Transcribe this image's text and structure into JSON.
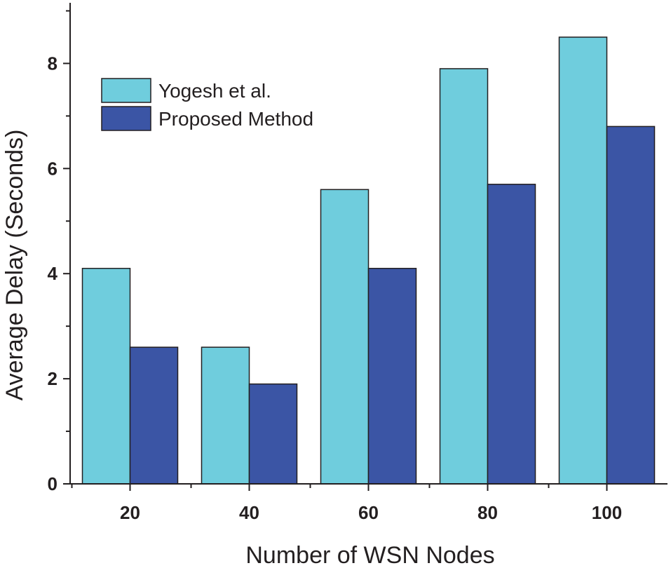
{
  "chart_data": {
    "type": "bar",
    "categories": [
      "20",
      "40",
      "60",
      "80",
      "100"
    ],
    "series": [
      {
        "name": "Yogesh et al.",
        "color": "#6fcddd",
        "values": [
          4.1,
          2.6,
          5.6,
          7.9,
          8.5
        ]
      },
      {
        "name": "Proposed Method",
        "color": "#3b55a5",
        "values": [
          2.6,
          1.9,
          4.1,
          5.7,
          6.8
        ]
      }
    ],
    "title": "",
    "xlabel": "Number of WSN Nodes",
    "ylabel": "Average Delay (Seconds)",
    "ylim": [
      0,
      9.1
    ],
    "yticks": [
      0,
      2,
      4,
      6,
      8
    ],
    "y_minor_step": 1,
    "grid": false,
    "legend_position": "top-left"
  }
}
